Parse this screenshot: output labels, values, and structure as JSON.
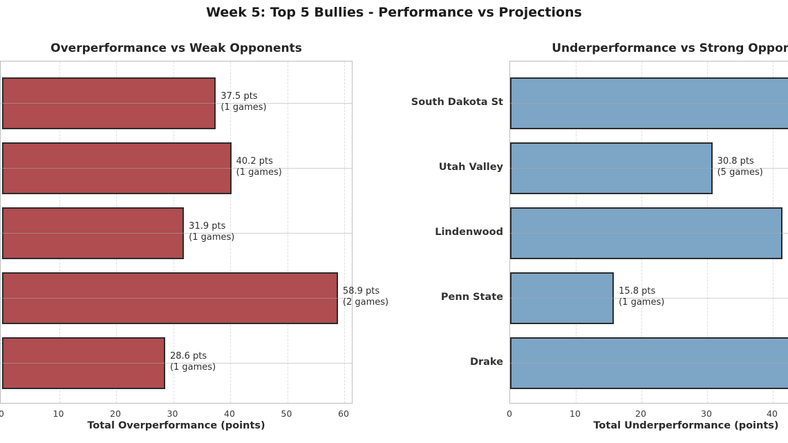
{
  "figure_title": "Week 5: Top 5 Bullies - Performance vs Projections",
  "chart_data": [
    {
      "type": "bar",
      "orientation": "horizontal",
      "title": "Overperformance vs Weak Opponents",
      "xlabel": "Total Overperformance (points)",
      "x_ticks": [
        0,
        10,
        20,
        30,
        40,
        50,
        60
      ],
      "xlim": [
        0,
        61.8
      ],
      "grid": true,
      "bar_color": "#AF4D50",
      "bar_edge_color": "#2B2B2B",
      "category_labels_cropped": true,
      "bars": [
        {
          "category": null,
          "value_pts": 37.5,
          "games": 1,
          "annotation_line1": "37.5 pts",
          "annotation_line2": "(1 games)",
          "clipped": false
        },
        {
          "category": null,
          "value_pts": 40.2,
          "games": 1,
          "annotation_line1": "40.2 pts",
          "annotation_line2": "(1 games)",
          "clipped": false
        },
        {
          "category": null,
          "value_pts": 31.9,
          "games": 1,
          "annotation_line1": "31.9 pts",
          "annotation_line2": "(1 games)",
          "clipped": false
        },
        {
          "category": null,
          "value_pts": 58.9,
          "games": 2,
          "annotation_line1": "58.9 pts",
          "annotation_line2": "(2 games)",
          "clipped": false
        },
        {
          "category": null,
          "value_pts": 28.6,
          "games": 1,
          "annotation_line1": "28.6 pts",
          "annotation_line2": "(1 games)",
          "clipped": false
        }
      ]
    },
    {
      "type": "bar",
      "orientation": "horizontal",
      "title": "Underperformance vs Strong Opponents",
      "xlabel": "Total Underperformance (points)",
      "x_ticks": [
        0,
        10,
        20,
        30,
        40
      ],
      "xlim": [
        0,
        42.4
      ],
      "grid": true,
      "bar_color": "#7DA5C6",
      "bar_edge_color": "#2B2B2B",
      "category_labels_cropped": false,
      "bars": [
        {
          "category": "South Dakota St",
          "value_pts": null,
          "games": null,
          "annotation_line1": null,
          "annotation_line2": null,
          "clipped": true
        },
        {
          "category": "Utah Valley",
          "value_pts": 30.8,
          "games": 5,
          "annotation_line1": "30.8 pts",
          "annotation_line2": "(5 games)",
          "clipped": false
        },
        {
          "category": "Lindenwood",
          "value_pts": 41.5,
          "games": null,
          "annotation_line1": null,
          "annotation_line2": null,
          "clipped": false
        },
        {
          "category": "Penn State",
          "value_pts": 15.8,
          "games": 1,
          "annotation_line1": "15.8 pts",
          "annotation_line2": "(1 games)",
          "clipped": false
        },
        {
          "category": "Drake",
          "value_pts": null,
          "games": null,
          "annotation_line1": null,
          "annotation_line2": null,
          "clipped": true
        }
      ]
    }
  ]
}
